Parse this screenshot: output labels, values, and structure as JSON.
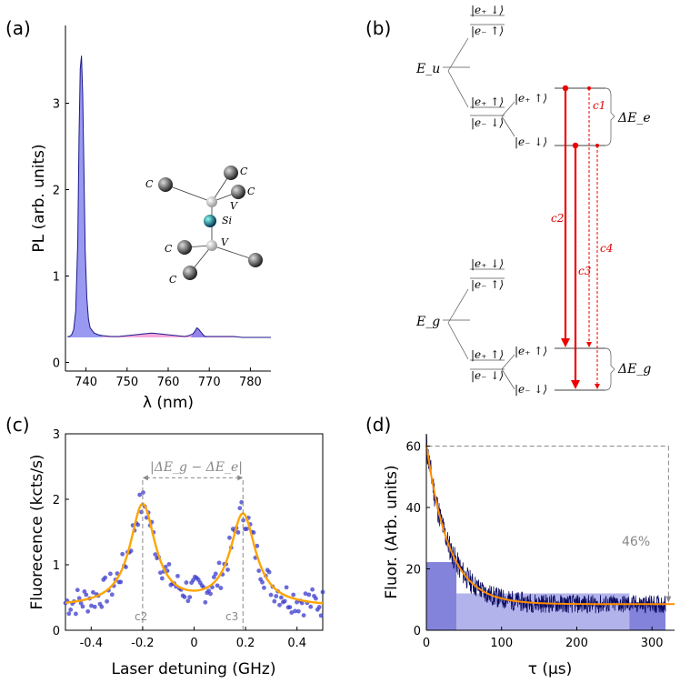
{
  "panels": {
    "a": "(a)",
    "b": "(b)",
    "c": "(c)",
    "d": "(d)"
  },
  "chart_data": [
    {
      "id": "a",
      "type": "area",
      "xlabel": "λ (nm)",
      "ylabel": "PL (arb. units)",
      "xlim": [
        735,
        785
      ],
      "ylim": [
        -0.1,
        3.9
      ],
      "xticks": [
        740,
        750,
        760,
        770,
        780
      ],
      "yticks": [
        0,
        1,
        2,
        3
      ],
      "series": [
        {
          "x": [
            735.5,
            736,
            736.5,
            737,
            737.5,
            738,
            738.3,
            738.6,
            738.9,
            739.2,
            739.5,
            739.8,
            740.2,
            740.6,
            741,
            742,
            743,
            744,
            746,
            748,
            750,
            752,
            754,
            756,
            758,
            760,
            762,
            764,
            765,
            766,
            766.5,
            767,
            767.5,
            768,
            768.5,
            769,
            770,
            771,
            772,
            774,
            776,
            778,
            780,
            782,
            784,
            785
          ],
          "y": [
            0.3,
            0.3,
            0.32,
            0.38,
            0.6,
            1.4,
            2.6,
            3.4,
            3.55,
            3.1,
            2.2,
            1.3,
            0.75,
            0.5,
            0.4,
            0.34,
            0.32,
            0.31,
            0.3,
            0.3,
            0.31,
            0.32,
            0.33,
            0.34,
            0.33,
            0.32,
            0.31,
            0.3,
            0.31,
            0.33,
            0.36,
            0.4,
            0.38,
            0.35,
            0.32,
            0.3,
            0.3,
            0.3,
            0.3,
            0.3,
            0.3,
            0.29,
            0.29,
            0.29,
            0.29,
            0.29
          ],
          "color": "#7777ee"
        }
      ],
      "inset_labels": {
        "carbon": "C",
        "vacancy": "V",
        "silicon": "Si"
      }
    },
    {
      "id": "b",
      "type": "diagram",
      "labels": {
        "Eu": "E_u",
        "Eg": "E_g",
        "dEe": "ΔE_e",
        "dEg": "ΔE_g",
        "c1": "c1",
        "c2": "c2",
        "c3": "c3",
        "c4": "c4"
      }
    },
    {
      "id": "c",
      "type": "scatter",
      "xlabel": "Laser detuning (GHz)",
      "ylabel": "Fluorecence (kcts/s)",
      "xlim": [
        -0.5,
        0.5
      ],
      "ylim": [
        0,
        3
      ],
      "xticks": [
        -0.4,
        -0.2,
        0,
        0.2,
        0.4
      ],
      "xtick_labels": [
        "-0.4",
        "-0.2",
        "0",
        "0.2",
        "0.4"
      ],
      "yticks": [
        0,
        1,
        2,
        3
      ],
      "annotation": "|ΔE_g − ΔE_e|",
      "line_labels": [
        "c2",
        "c3"
      ],
      "peaks": [
        -0.2,
        0.19
      ],
      "fit": {
        "amp": [
          1.55,
          1.4
        ],
        "width": 0.06,
        "base": 0.35,
        "center": [
          -0.2,
          0.19
        ],
        "color": "#ffa500"
      },
      "points_color": "#3a3acc"
    },
    {
      "id": "d",
      "type": "line",
      "xlabel": "τ (μs)",
      "ylabel": "Fluor. (Arb. units)",
      "xlim": [
        0,
        330
      ],
      "ylim": [
        0,
        64
      ],
      "xticks": [
        0,
        100,
        200,
        300
      ],
      "yticks": [
        0,
        20,
        40,
        60
      ],
      "annotation": "46%",
      "decay": {
        "A": 52,
        "tau": 30,
        "base": 8.5
      },
      "data_color": "#0a0a60",
      "fit_color": "#ff8c00"
    }
  ]
}
